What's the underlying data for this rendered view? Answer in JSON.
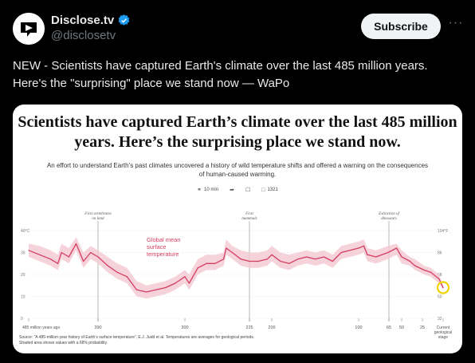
{
  "account": {
    "display_name": "Disclose.tv",
    "handle": "@disclosetv",
    "subscribe_label": "Subscribe",
    "more_label": "···"
  },
  "tweet": {
    "text": "NEW - Scientists have captured Earth's climate over the last 485 million years. Here's the \"surprising\" place we stand now — WaPo"
  },
  "card": {
    "headline": "Scientists have captured Earth’s climate over the last 485 million years. Here’s the surprising place we stand now.",
    "deck": "An effort to understand Earth’s past climates uncovered a history of wild temperature shifts and offered a warning on the consequences of human-caused warming.",
    "read_time": "10 min",
    "comments": "1321",
    "source": "Source: “A 485-million-year history of Earth’s surface temperature”, E.J. Judd et al. Temperatures are averages for geological periods. Shaded area shows values with a 68% probability."
  },
  "colors": {
    "line": "#d43d61",
    "band": "#f4c8d2",
    "highlight": "#f0d400"
  },
  "chart_data": {
    "type": "line",
    "series_label": "Global mean surface temperature",
    "x_unit": "million years ago",
    "x_axis_direction": "reversed",
    "x_ticks": [
      "485 million years ago",
      "390",
      "300",
      "225",
      "200",
      "100",
      "65",
      "50",
      "25",
      "Current geological stage"
    ],
    "y_left_ticks": [
      "40°C",
      "30",
      "20",
      "10",
      "0"
    ],
    "y_right_ticks": [
      "104°F",
      "86",
      "68",
      "50",
      "32"
    ],
    "annotations": [
      {
        "label": "First vertebrates on land",
        "x": 390
      },
      {
        "label": "First mammals",
        "x": 225
      },
      {
        "label": "Extinction of dinosaurs",
        "x": 65
      }
    ],
    "ylim": [
      0,
      40
    ],
    "xlim": [
      485,
      0
    ],
    "x": [
      485,
      470,
      455,
      445,
      440,
      430,
      420,
      410,
      400,
      395,
      390,
      380,
      370,
      360,
      350,
      340,
      330,
      320,
      310,
      300,
      295,
      285,
      275,
      265,
      255,
      252,
      245,
      235,
      225,
      215,
      205,
      200,
      190,
      180,
      170,
      160,
      150,
      140,
      130,
      120,
      110,
      100,
      94,
      90,
      80,
      66,
      56,
      50,
      40,
      34,
      23,
      15,
      5,
      0
    ],
    "values": [
      31,
      29,
      27,
      25,
      30,
      28,
      34,
      26,
      30,
      29,
      28,
      24,
      21,
      19,
      13,
      12,
      13,
      14,
      16,
      19,
      16,
      23,
      25,
      25,
      27,
      32,
      30,
      27,
      26,
      26,
      27,
      29,
      26,
      25,
      27,
      28,
      27,
      28,
      26,
      30,
      31,
      32,
      33,
      29,
      28,
      30,
      32,
      28,
      26,
      24,
      22,
      21,
      18,
      14
    ],
    "band_upper": [
      34,
      33,
      31,
      29,
      34,
      32,
      37,
      30,
      33,
      32,
      31,
      28,
      25,
      23,
      17,
      15,
      16,
      17,
      19,
      22,
      20,
      27,
      29,
      29,
      30,
      36,
      33,
      31,
      30,
      30,
      31,
      33,
      30,
      29,
      30,
      31,
      30,
      31,
      29,
      33,
      34,
      35,
      36,
      32,
      31,
      33,
      34,
      31,
      28,
      27,
      24,
      23,
      20,
      15
    ],
    "band_lower": [
      28,
      26,
      24,
      22,
      27,
      25,
      31,
      23,
      27,
      26,
      25,
      21,
      18,
      16,
      10,
      9,
      10,
      11,
      13,
      16,
      13,
      20,
      22,
      22,
      24,
      29,
      27,
      24,
      23,
      23,
      24,
      26,
      23,
      22,
      24,
      25,
      24,
      25,
      23,
      27,
      28,
      29,
      30,
      26,
      25,
      27,
      29,
      25,
      24,
      22,
      20,
      19,
      16,
      13
    ]
  }
}
